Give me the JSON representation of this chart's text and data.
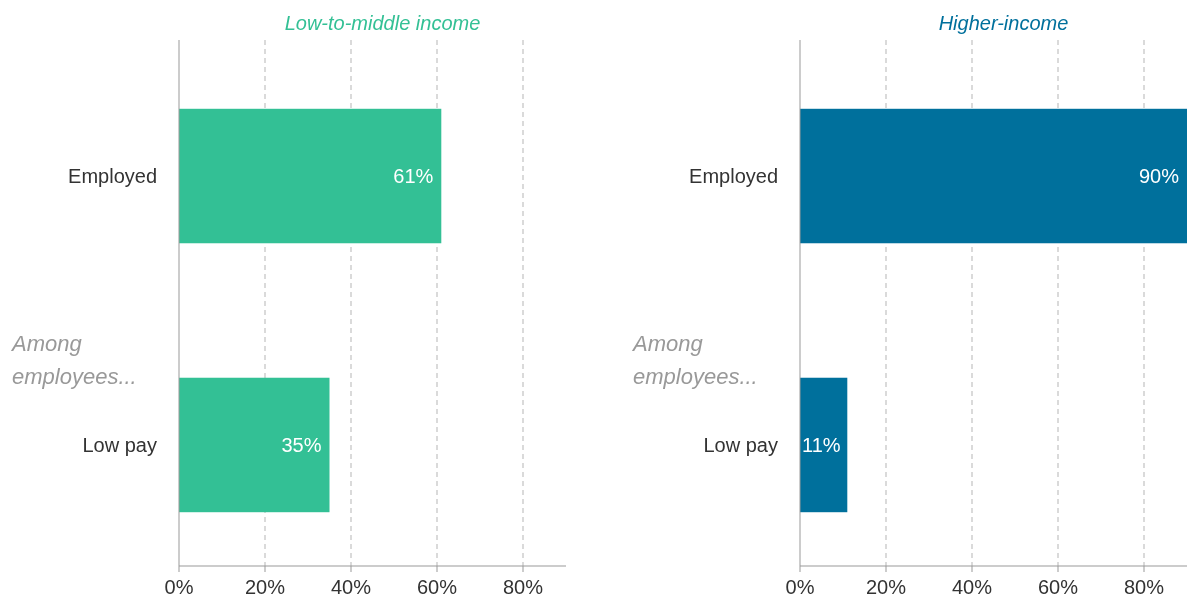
{
  "chart_data": [
    {
      "type": "bar",
      "orientation": "horizontal",
      "title": "Low-to-middle income",
      "categories": [
        "Employed",
        "Low pay"
      ],
      "series": [
        {
          "color": "#33c095",
          "values": [
            61,
            35
          ],
          "value_labels": [
            "61%",
            "35%"
          ]
        }
      ],
      "xlim": [
        0,
        90
      ],
      "xticks": [
        {
          "value": 0,
          "label": "0%"
        },
        {
          "value": 20,
          "label": "20%"
        },
        {
          "value": 40,
          "label": "40%"
        },
        {
          "value": 60,
          "label": "60%"
        },
        {
          "value": 80,
          "label": "80%"
        }
      ],
      "grid": "x",
      "annotations": [
        "Among employees..."
      ]
    },
    {
      "type": "bar",
      "orientation": "horizontal",
      "title": "Higher-income",
      "categories": [
        "Employed",
        "Low pay"
      ],
      "series": [
        {
          "color": "#00709c",
          "values": [
            90,
            11
          ],
          "value_labels": [
            "90%",
            "11%"
          ]
        }
      ],
      "xlim": [
        0,
        90
      ],
      "xticks": [
        {
          "value": 0,
          "label": "0%"
        },
        {
          "value": 20,
          "label": "20%"
        },
        {
          "value": 40,
          "label": "40%"
        },
        {
          "value": 60,
          "label": "60%"
        },
        {
          "value": 80,
          "label": "80%"
        }
      ],
      "grid": "x",
      "annotations": [
        "Among employees..."
      ]
    }
  ]
}
